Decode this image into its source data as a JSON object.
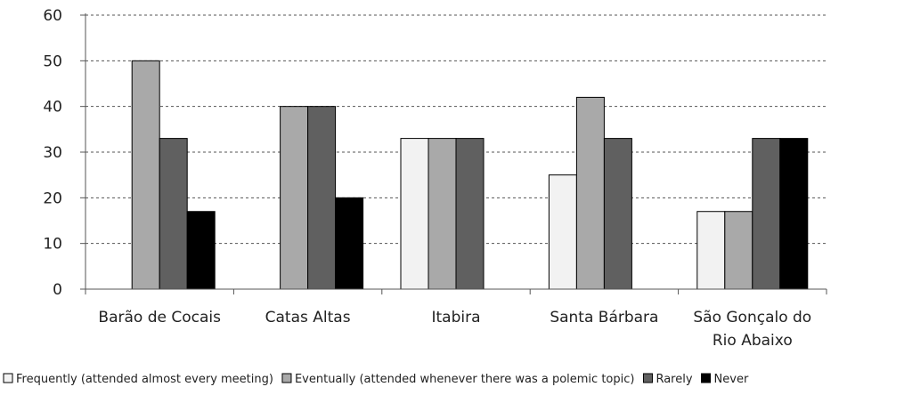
{
  "chart_data": {
    "type": "bar",
    "categories": [
      [
        "Barão de Cocais"
      ],
      [
        "Catas Altas"
      ],
      [
        "Itabira"
      ],
      [
        "Santa Bárbara"
      ],
      [
        "São Gonçalo do",
        "Rio Abaixo"
      ]
    ],
    "series": [
      {
        "name": "Frequently (attended almost every meeting)",
        "color": "#f2f2f2",
        "values": [
          0,
          0,
          33,
          25,
          17
        ]
      },
      {
        "name": "Eventually (attended whenever there was a polemic topic)",
        "color": "#a9a9a9",
        "values": [
          50,
          40,
          33,
          42,
          17
        ]
      },
      {
        "name": "Rarely",
        "color": "#606060",
        "values": [
          33,
          40,
          33,
          33,
          33
        ]
      },
      {
        "name": "Never",
        "color": "#000000",
        "values": [
          17,
          20,
          0,
          0,
          33
        ]
      }
    ],
    "yticks": [
      "0",
      "10",
      "20",
      "30",
      "40",
      "50",
      "60"
    ],
    "ylim": [
      0,
      60
    ],
    "grid": true,
    "legend_position": "bottom"
  }
}
